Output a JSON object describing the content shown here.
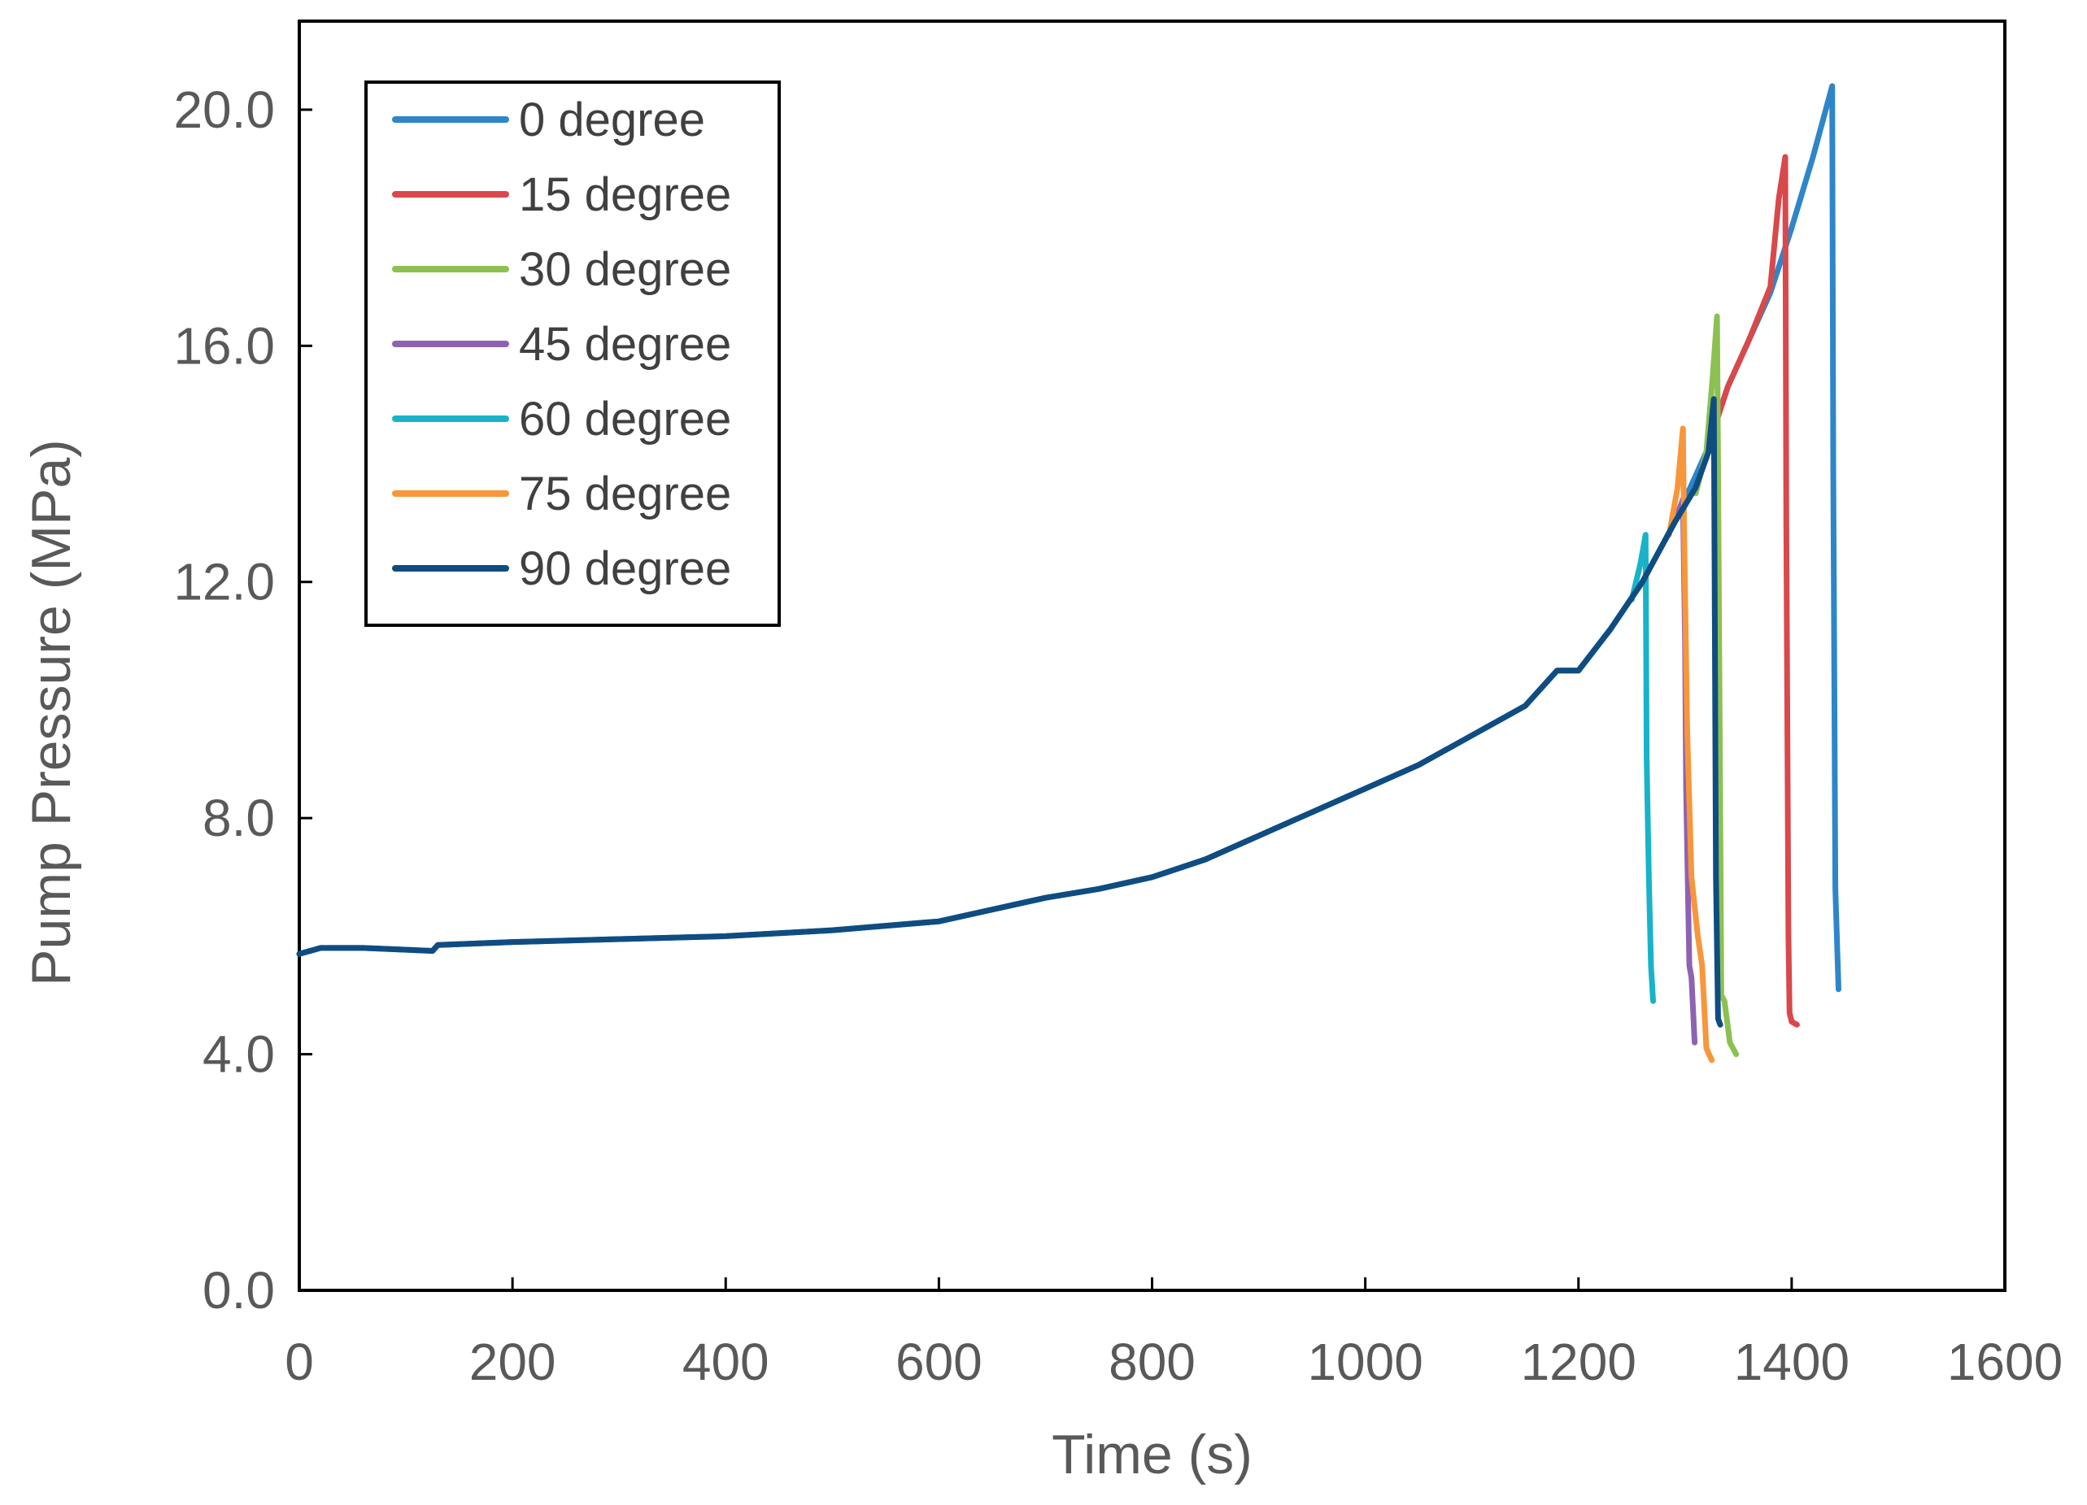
{
  "chart_data": {
    "type": "line",
    "title": "",
    "xlabel": "Time (s)",
    "ylabel": "Pump Pressure (MPa)",
    "xlim": [
      0,
      1600
    ],
    "ylim": [
      0,
      21.5
    ],
    "xticks": [
      0,
      200,
      400,
      600,
      800,
      1000,
      1200,
      1400,
      1600
    ],
    "xtick_labels": [
      "0",
      "200",
      "400",
      "600",
      "800",
      "1000",
      "1200",
      "1400",
      "1600"
    ],
    "yticks": [
      0,
      4,
      8,
      12,
      16,
      20
    ],
    "ytick_labels": [
      "0.0",
      "4.0",
      "8.0",
      "12.0",
      "16.0",
      "20.0"
    ],
    "legend_position": "top-left",
    "grid": false,
    "series": [
      {
        "name": "0 degree",
        "color": "#2E86C9",
        "x": [
          0,
          20,
          60,
          125,
          130,
          200,
          300,
          400,
          500,
          600,
          650,
          700,
          750,
          800,
          850,
          900,
          950,
          1000,
          1050,
          1100,
          1150,
          1180,
          1200,
          1230,
          1260,
          1290,
          1320,
          1340,
          1360,
          1380,
          1400,
          1420,
          1438,
          1439,
          1441,
          1444
        ],
        "y": [
          5.7,
          5.8,
          5.8,
          5.75,
          5.85,
          5.9,
          5.95,
          6.0,
          6.1,
          6.25,
          6.45,
          6.65,
          6.8,
          7.0,
          7.3,
          7.7,
          8.1,
          8.5,
          8.9,
          9.4,
          9.9,
          10.5,
          10.5,
          11.2,
          12.0,
          13.0,
          14.2,
          15.3,
          16.1,
          16.9,
          18.0,
          19.2,
          20.4,
          14.0,
          6.8,
          5.1
        ]
      },
      {
        "name": "15 degree",
        "color": "#D9484B",
        "x": [
          1320,
          1340,
          1360,
          1380,
          1388,
          1394,
          1395,
          1397,
          1398,
          1400,
          1405
        ],
        "y": [
          14.2,
          15.3,
          16.1,
          17.0,
          18.5,
          19.2,
          13.0,
          6.0,
          4.7,
          4.55,
          4.5
        ]
      },
      {
        "name": "30 degree",
        "color": "#8CC152",
        "x": [
          1310,
          1320,
          1326,
          1330,
          1331,
          1333,
          1334,
          1337,
          1342,
          1348
        ],
        "y": [
          13.5,
          14.2,
          15.5,
          16.5,
          14.0,
          8.0,
          5.0,
          4.9,
          4.2,
          4.0
        ]
      },
      {
        "name": "45 degree",
        "color": "#8E62B2",
        "x": [
          1290,
          1298,
          1300,
          1301,
          1303,
          1304,
          1306,
          1309
        ],
        "y": [
          13.0,
          13.4,
          11.0,
          8.5,
          6.5,
          5.5,
          5.3,
          4.2
        ]
      },
      {
        "name": "60 degree",
        "color": "#18B3C8",
        "x": [
          1250,
          1258,
          1263,
          1264,
          1266,
          1268,
          1270
        ],
        "y": [
          11.7,
          12.3,
          12.8,
          9.0,
          7.0,
          5.5,
          4.9
        ]
      },
      {
        "name": "75 degree",
        "color": "#F8963B",
        "x": [
          1285,
          1293,
          1298,
          1299,
          1302,
          1306,
          1312,
          1316,
          1320,
          1325
        ],
        "y": [
          12.8,
          13.6,
          14.6,
          13.0,
          9.5,
          7.0,
          6.0,
          5.5,
          4.1,
          3.9
        ]
      },
      {
        "name": "90 degree",
        "color": "#0F4C81",
        "x": [
          0,
          20,
          60,
          125,
          130,
          200,
          300,
          400,
          500,
          600,
          650,
          700,
          750,
          800,
          850,
          900,
          950,
          1000,
          1050,
          1100,
          1150,
          1180,
          1200,
          1230,
          1260,
          1290,
          1310,
          1322,
          1327,
          1328,
          1329,
          1331,
          1333
        ],
        "y": [
          5.7,
          5.8,
          5.8,
          5.75,
          5.85,
          5.9,
          5.95,
          6.0,
          6.1,
          6.25,
          6.45,
          6.65,
          6.8,
          7.0,
          7.3,
          7.7,
          8.1,
          8.5,
          8.9,
          9.4,
          9.9,
          10.5,
          10.5,
          11.2,
          12.0,
          13.0,
          13.6,
          14.2,
          15.1,
          11.0,
          7.0,
          4.6,
          4.5
        ]
      }
    ]
  }
}
